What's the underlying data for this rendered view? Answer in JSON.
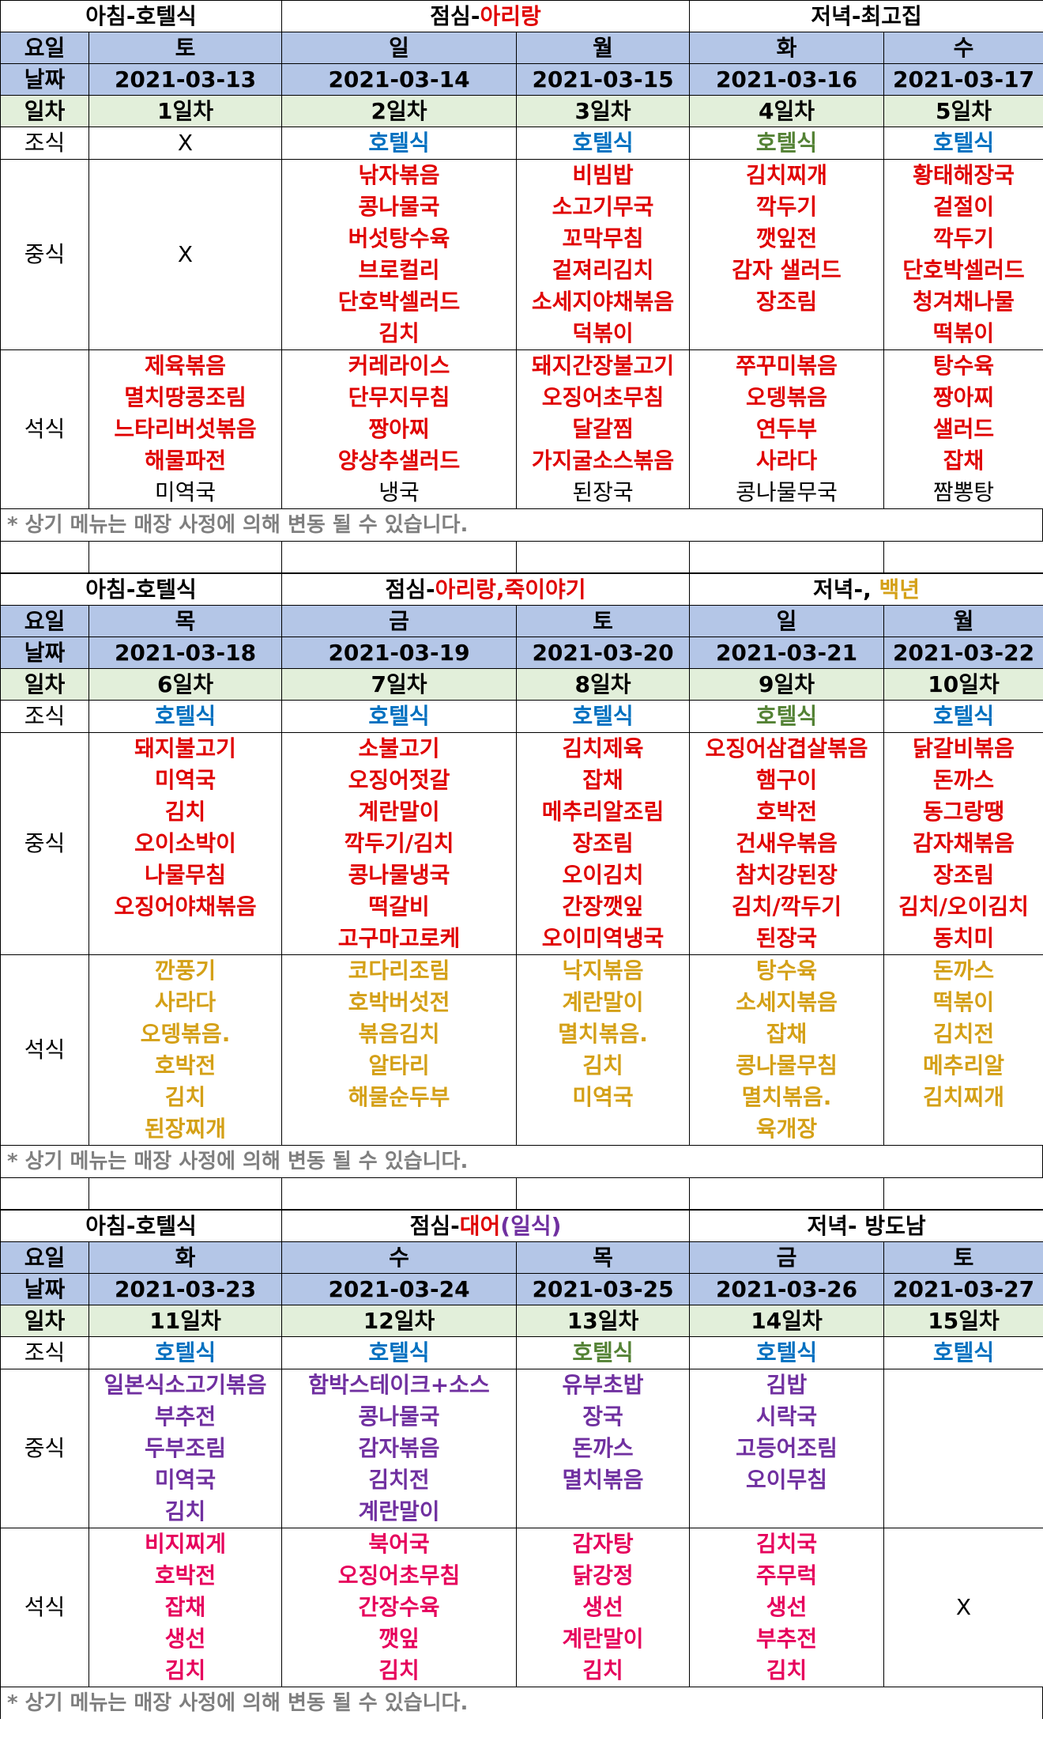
{
  "footnote": "* 상기 메뉴는 매장 사정에 의해 변동 될 수 있습니다.",
  "labels": {
    "day": "요일",
    "date": "날짜",
    "nth": "일차",
    "breakfast": "조식",
    "lunch": "중식",
    "dinner": "석식"
  },
  "colors": {
    "header_blue": "#b4c6e7",
    "header_green": "#e2efda",
    "red": "#e00000",
    "blue": "#0070c0",
    "green": "#548235",
    "gold": "#d4a017",
    "purple": "#7030a0",
    "magenta": "#e6005c"
  },
  "weeks": [
    {
      "titles": {
        "morning": "아침-호텔식",
        "lunch_prefix": "점심-",
        "lunch_name": "아리랑",
        "dinner": "저녁-최고집"
      },
      "days": [
        {
          "day": "토",
          "date": "2021-03-13",
          "nth": "1일차",
          "breakfast": "X",
          "lunch": [],
          "lunch_x": "X",
          "dinner": [
            "제육볶음",
            "멸치땅콩조림",
            "느타리버섯볶음",
            "해물파전"
          ],
          "soup": "미역국"
        },
        {
          "day": "일",
          "date": "2021-03-14",
          "nth": "2일차",
          "breakfast": "호텔식",
          "lunch": [
            "낚자볶음",
            "콩나물국",
            "버섯탕수육",
            "브로컬리",
            "단호박셀러드",
            "김치"
          ],
          "dinner": [
            "커레라이스",
            "단무지무침",
            "짱아찌",
            "양상추샐러드"
          ],
          "soup": "냉국"
        },
        {
          "day": "월",
          "date": "2021-03-15",
          "nth": "3일차",
          "breakfast": "호텔식",
          "lunch": [
            "비빔밥",
            "소고기무국",
            "꼬막무침",
            "겉져리김치",
            "소세지야채볶음",
            "덕볶이"
          ],
          "dinner": [
            "돼지간장불고기",
            "오징어초무침",
            "달갈찜",
            "가지굴소스볶음"
          ],
          "soup": "된장국"
        },
        {
          "day": "화",
          "date": "2021-03-16",
          "nth": "4일차",
          "breakfast": "호텔식",
          "lunch": [
            "김치찌개",
            "깍두기",
            "깻잎전",
            "감자 샐러드",
            "장조림",
            ""
          ],
          "dinner": [
            "쭈꾸미볶음",
            "오뎅볶음",
            "연두부",
            "사라다"
          ],
          "soup": "콩나물무국"
        },
        {
          "day": "수",
          "date": "2021-03-17",
          "nth": "5일차",
          "breakfast": "호텔식",
          "lunch": [
            "황태해장국",
            "겉절이",
            "깍두기",
            "단호박셀러드",
            "청겨채나물",
            "떡볶이"
          ],
          "dinner": [
            "탕수육",
            "짱아찌",
            "샐러드",
            "잡채"
          ],
          "soup": "짬뽕탕"
        }
      ]
    },
    {
      "titles": {
        "morning": "아침-호텔식",
        "lunch_prefix": "점심-",
        "lunch_name": "아리랑,죽이야기",
        "dinner_prefix": "저녁-, ",
        "dinner_name": "백년"
      },
      "days": [
        {
          "day": "목",
          "date": "2021-03-18",
          "nth": "6일차",
          "breakfast": "호텔식",
          "lunch": [
            "돼지불고기",
            "미역국",
            "김치",
            "오이소박이",
            "나물무침",
            "오징어야채볶음",
            ""
          ],
          "dinner": [
            "깐풍기",
            "사라다",
            "오뎅볶음.",
            "호박전",
            "김치",
            "된장찌개"
          ]
        },
        {
          "day": "금",
          "date": "2021-03-19",
          "nth": "7일차",
          "breakfast": "호텔식",
          "lunch": [
            "소불고기",
            "오징어젓갈",
            "계란말이",
            "깍두기/김치",
            "콩나물냉국",
            "떡갈비",
            "고구마고로케"
          ],
          "dinner": [
            "코다리조림",
            "호박버섯전",
            "볶음김치",
            "알타리",
            "해물순두부",
            ""
          ]
        },
        {
          "day": "토",
          "date": "2021-03-20",
          "nth": "8일차",
          "breakfast": "호텔식",
          "lunch": [
            "김치제육",
            "잡채",
            "메추리알조림",
            "장조림",
            "오이김치",
            "간장깻잎",
            "오이미역냉국"
          ],
          "dinner": [
            "낙지볶음",
            "계란말이",
            "멸치볶음.",
            "김치",
            "미역국",
            ""
          ]
        },
        {
          "day": "일",
          "date": "2021-03-21",
          "nth": "9일차",
          "breakfast": "호텔식",
          "lunch": [
            "오징어삼겹살볶음",
            "햄구이",
            "호박전",
            "건새우볶음",
            "참치강된장",
            "김치/깍두기",
            "된장국"
          ],
          "dinner": [
            "탕수육",
            "소세지볶음",
            "잡채",
            "콩나물무침",
            "멸치볶음.",
            "육개장"
          ]
        },
        {
          "day": "월",
          "date": "2021-03-22",
          "nth": "10일차",
          "breakfast": "호텔식",
          "lunch": [
            "닭갈비볶음",
            "돈까스",
            "동그랑땡",
            "감자채볶음",
            "장조림",
            "김치/오이김치",
            "동치미"
          ],
          "dinner": [
            "돈까스",
            "떡볶이",
            "김치전",
            "메추리알",
            "김치찌개",
            ""
          ]
        }
      ]
    },
    {
      "titles": {
        "morning": "아침-호텔식",
        "lunch_prefix": "점심-",
        "lunch_name": "대어",
        "lunch_suffix": "(일식)",
        "dinner": "저녁- 방도남"
      },
      "days": [
        {
          "day": "화",
          "date": "2021-03-23",
          "nth": "11일차",
          "breakfast": "호텔식",
          "lunch": [
            "일본식소고기볶음",
            "부추전",
            "두부조림",
            "미역국",
            "김치"
          ],
          "dinner": [
            "비지찌게",
            "호박전",
            "잡채",
            "생선",
            "김치"
          ]
        },
        {
          "day": "수",
          "date": "2021-03-24",
          "nth": "12일차",
          "breakfast": "호텔식",
          "lunch": [
            "함박스테이크+소스",
            "콩나물국",
            "감자볶음",
            "김치전",
            "계란말이"
          ],
          "dinner": [
            "북어국",
            "오징어초무침",
            "간장수육",
            "깻잎",
            "김치"
          ]
        },
        {
          "day": "목",
          "date": "2021-03-25",
          "nth": "13일차",
          "breakfast": "호텔식",
          "lunch": [
            "유부초밥",
            "장국",
            "돈까스",
            "멸치볶음",
            ""
          ],
          "dinner": [
            "감자탕",
            "닭강정",
            "생선",
            "계란말이",
            "김치"
          ]
        },
        {
          "day": "금",
          "date": "2021-03-26",
          "nth": "14일차",
          "breakfast": "호텔식",
          "lunch": [
            "김밥",
            "시락국",
            "고등어조림",
            "오이무침",
            ""
          ],
          "dinner": [
            "김치국",
            "주무럭",
            "생선",
            "부추전",
            "김치"
          ]
        },
        {
          "day": "토",
          "date": "2021-03-27",
          "nth": "15일차",
          "breakfast": "호텔식",
          "lunch": [],
          "dinner": [],
          "dinner_x": "X"
        }
      ]
    }
  ]
}
